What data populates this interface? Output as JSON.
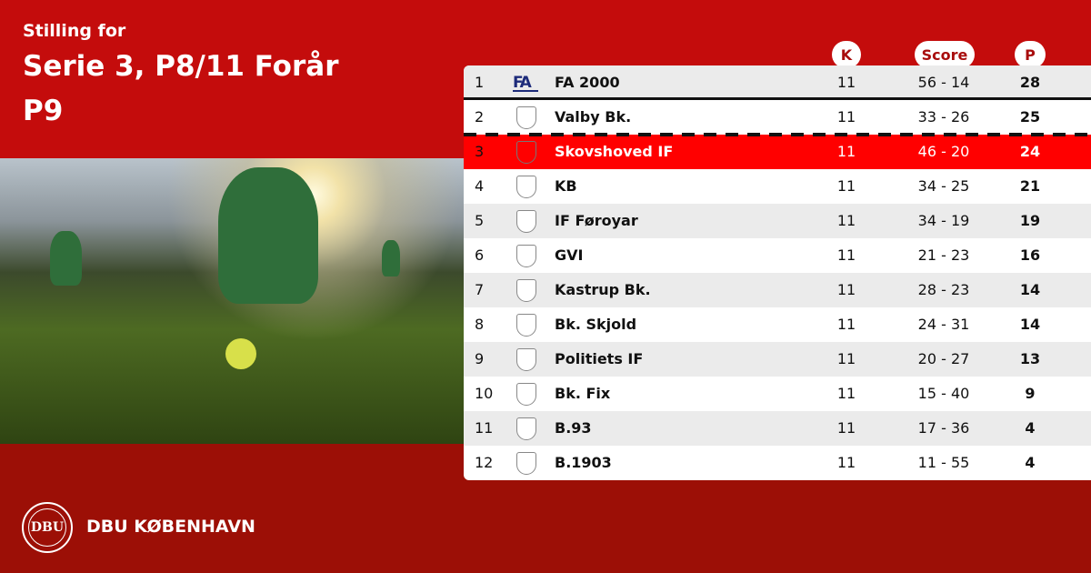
{
  "header": {
    "subtitle": "Stilling for",
    "title": "Serie 3, P8/11 Forår",
    "subtitle2": "P9"
  },
  "columns": {
    "k": "K",
    "score": "Score",
    "p": "P"
  },
  "rows": [
    {
      "rank": "1",
      "team": "FA 2000",
      "k": "11",
      "score": "56 - 14",
      "p": "28",
      "logo": "FA"
    },
    {
      "rank": "2",
      "team": "Valby Bk.",
      "k": "11",
      "score": "33 - 26",
      "p": "25"
    },
    {
      "rank": "3",
      "team": "Skovshoved IF",
      "k": "11",
      "score": "46 - 20",
      "p": "24"
    },
    {
      "rank": "4",
      "team": "KB",
      "k": "11",
      "score": "34 - 25",
      "p": "21"
    },
    {
      "rank": "5",
      "team": "IF Føroyar",
      "k": "11",
      "score": "34 - 19",
      "p": "19"
    },
    {
      "rank": "6",
      "team": "GVI",
      "k": "11",
      "score": "21 - 23",
      "p": "16"
    },
    {
      "rank": "7",
      "team": "Kastrup Bk.",
      "k": "11",
      "score": "28 - 23",
      "p": "14"
    },
    {
      "rank": "8",
      "team": "Bk. Skjold",
      "k": "11",
      "score": "24 - 31",
      "p": "14"
    },
    {
      "rank": "9",
      "team": "Politiets IF",
      "k": "11",
      "score": "20 - 27",
      "p": "13"
    },
    {
      "rank": "10",
      "team": "Bk. Fix",
      "k": "11",
      "score": "15 - 40",
      "p": "9"
    },
    {
      "rank": "11",
      "team": "B.93",
      "k": "11",
      "score": "17 - 36",
      "p": "4"
    },
    {
      "rank": "12",
      "team": "B.1903",
      "k": "11",
      "score": "11 - 55",
      "p": "4"
    }
  ],
  "footer": {
    "brand": "DBU KØBENHAVN",
    "seal": "DBU"
  },
  "colors": {
    "top": "#c40c0c",
    "bottom": "#9c0f06",
    "highlight": "#ff0000"
  }
}
